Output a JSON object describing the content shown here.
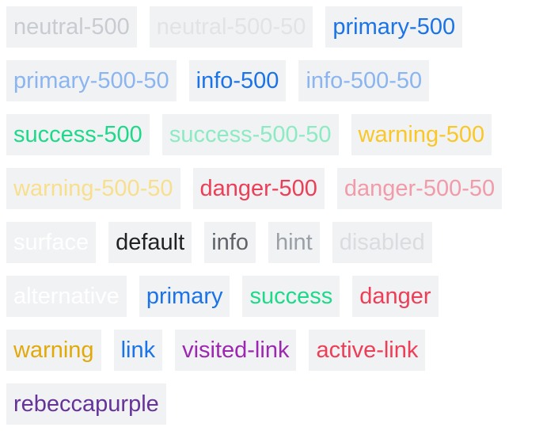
{
  "swatches": [
    {
      "label": "neutral-500",
      "color": "#c8ccd1"
    },
    {
      "label": "neutral-500-50",
      "color": "#e1e3e6"
    },
    {
      "label": "primary-500",
      "color": "#1a73e8"
    },
    {
      "label": "primary-500-50",
      "color": "#8ab5f1"
    },
    {
      "label": "info-500",
      "color": "#1a73e8"
    },
    {
      "label": "info-500-50",
      "color": "#8ab5f1"
    },
    {
      "label": "success-500",
      "color": "#1ed98a"
    },
    {
      "label": "success-500-50",
      "color": "#8cebc3"
    },
    {
      "label": "warning-500",
      "color": "#f9c828"
    },
    {
      "label": "warning-500-50",
      "color": "#f8df8d"
    },
    {
      "label": "danger-500",
      "color": "#ec3e57"
    },
    {
      "label": "danger-500-50",
      "color": "#f39aa9"
    },
    {
      "label": "surface",
      "color": "#ffffff"
    },
    {
      "label": "default",
      "color": "#202124"
    },
    {
      "label": "info",
      "color": "#5f6368"
    },
    {
      "label": "hint",
      "color": "#9aa0a6"
    },
    {
      "label": "disabled",
      "color": "#dadce0"
    },
    {
      "label": "alternative",
      "color": "#ffffff"
    },
    {
      "label": "primary",
      "color": "#1a73e8"
    },
    {
      "label": "success",
      "color": "#1ed98a"
    },
    {
      "label": "danger",
      "color": "#ec3e57"
    },
    {
      "label": "warning",
      "color": "#e2a90b"
    },
    {
      "label": "link",
      "color": "#1a73e8"
    },
    {
      "label": "visited-link",
      "color": "#9c27b0"
    },
    {
      "label": "active-link",
      "color": "#ec3e57"
    },
    {
      "label": "rebeccapurple",
      "color": "#663399"
    }
  ]
}
